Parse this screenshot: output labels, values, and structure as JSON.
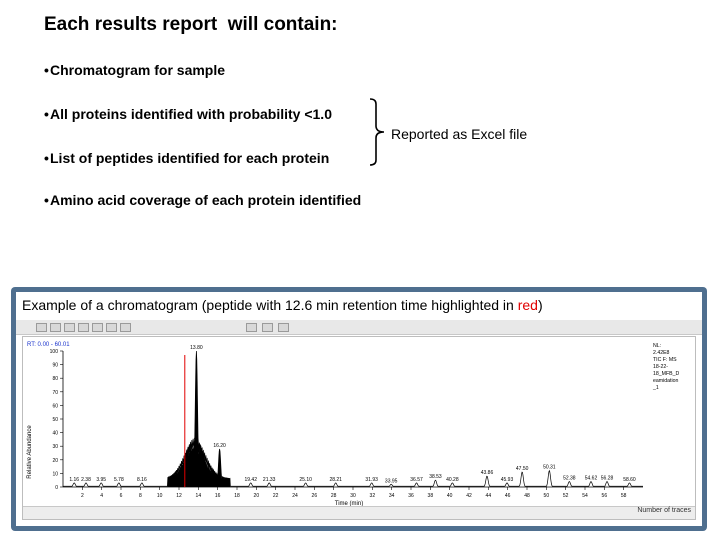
{
  "slide": {
    "title": "Each results report  will contain:",
    "bullets": [
      "Chromatogram for sample",
      "All proteins identified with probability <1.0",
      "List of peptides identified for each protein",
      "Amino acid coverage of each protein identified"
    ],
    "bullet_marker": "•",
    "excel_note": "Reported as Excel file"
  },
  "caption": {
    "prefix": "Example of a chromatogram (peptide with 12.6 min retention time highlighted in ",
    "highlight": "red",
    "suffix": ")",
    "highlight_color": "#e00000"
  },
  "window": {
    "footer": "Number of traces"
  },
  "colors": {
    "frame": "#4f6f8f",
    "trace": "#000000",
    "highlight_trace": "#e00000",
    "rt_label": "#1a33cc"
  },
  "chart_data": {
    "type": "line",
    "rt_range_label": "RT: 0.00 - 60.01",
    "xlabel": "Time (min)",
    "ylabel": "Relative Abundance",
    "xlim": [
      0,
      60
    ],
    "ylim": [
      0,
      100
    ],
    "xticks": [
      2,
      4,
      6,
      8,
      10,
      12,
      14,
      16,
      18,
      20,
      22,
      24,
      26,
      28,
      30,
      32,
      34,
      36,
      38,
      40,
      42,
      44,
      46,
      48,
      50,
      52,
      54,
      56,
      58
    ],
    "yticks": [
      0,
      10,
      20,
      30,
      40,
      50,
      60,
      70,
      80,
      90,
      100
    ],
    "info_box": [
      "NL:",
      "2.42E8",
      "TIC F: MS",
      "18-22-",
      "18_MFB_D",
      "eamidation",
      "_1"
    ],
    "peaks": [
      {
        "label": "1.16",
        "x": 1.16,
        "y": 3
      },
      {
        "label": "2.38",
        "x": 2.38,
        "y": 3
      },
      {
        "label": "3.95",
        "x": 3.95,
        "y": 3
      },
      {
        "label": "5.78",
        "x": 5.78,
        "y": 3
      },
      {
        "label": "8.16",
        "x": 8.16,
        "y": 3
      },
      {
        "label": "13.80",
        "x": 13.8,
        "y": 100
      },
      {
        "label": "16.20",
        "x": 16.2,
        "y": 28
      },
      {
        "label": "19.42",
        "x": 19.42,
        "y": 3
      },
      {
        "label": "21.33",
        "x": 21.33,
        "y": 3
      },
      {
        "label": "25.10",
        "x": 25.1,
        "y": 3
      },
      {
        "label": "28.21",
        "x": 28.21,
        "y": 3
      },
      {
        "label": "31.93",
        "x": 31.93,
        "y": 3
      },
      {
        "label": "33.95",
        "x": 33.95,
        "y": 2
      },
      {
        "label": "36.57",
        "x": 36.57,
        "y": 3
      },
      {
        "label": "38.53",
        "x": 38.53,
        "y": 5
      },
      {
        "label": "40.28",
        "x": 40.28,
        "y": 3
      },
      {
        "label": "43.86",
        "x": 43.86,
        "y": 8
      },
      {
        "label": "45.93",
        "x": 45.93,
        "y": 3
      },
      {
        "label": "47.50",
        "x": 47.5,
        "y": 11
      },
      {
        "label": "50.31",
        "x": 50.31,
        "y": 12
      },
      {
        "label": "52.38",
        "x": 52.38,
        "y": 4
      },
      {
        "label": "54.62",
        "x": 54.62,
        "y": 4
      },
      {
        "label": "56.28",
        "x": 56.28,
        "y": 4
      },
      {
        "label": "58.60",
        "x": 58.6,
        "y": 3
      }
    ],
    "highlight": {
      "x": 12.6,
      "y": 100
    }
  }
}
